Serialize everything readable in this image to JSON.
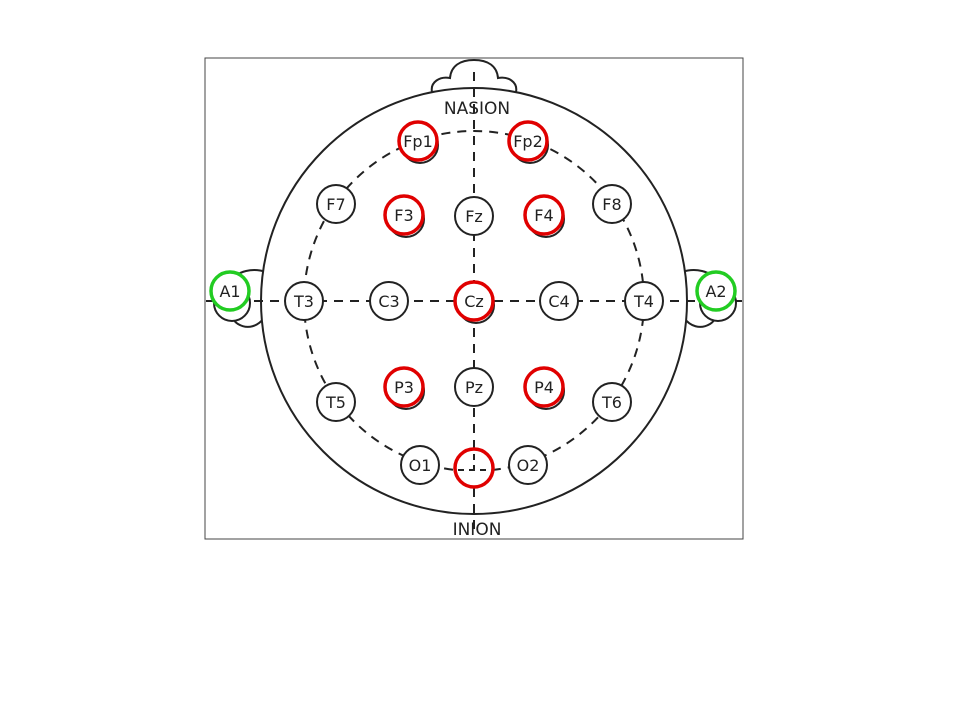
{
  "diagram": {
    "labels": {
      "top": "NASION",
      "bottom": "INION"
    },
    "electrodes": [
      {
        "id": "fp1",
        "label": "Fp1",
        "highlight": "red"
      },
      {
        "id": "fp2",
        "label": "Fp2",
        "highlight": "red"
      },
      {
        "id": "f7",
        "label": "F7",
        "highlight": "none"
      },
      {
        "id": "f3",
        "label": "F3",
        "highlight": "red"
      },
      {
        "id": "fz",
        "label": "Fz",
        "highlight": "none"
      },
      {
        "id": "f4",
        "label": "F4",
        "highlight": "red"
      },
      {
        "id": "f8",
        "label": "F8",
        "highlight": "none"
      },
      {
        "id": "a1",
        "label": "A1",
        "highlight": "green"
      },
      {
        "id": "t3",
        "label": "T3",
        "highlight": "none"
      },
      {
        "id": "c3",
        "label": "C3",
        "highlight": "none"
      },
      {
        "id": "cz",
        "label": "Cz",
        "highlight": "red"
      },
      {
        "id": "c4",
        "label": "C4",
        "highlight": "none"
      },
      {
        "id": "t4",
        "label": "T4",
        "highlight": "none"
      },
      {
        "id": "a2",
        "label": "A2",
        "highlight": "green"
      },
      {
        "id": "t5",
        "label": "T5",
        "highlight": "none"
      },
      {
        "id": "p3",
        "label": "P3",
        "highlight": "red"
      },
      {
        "id": "pz",
        "label": "Pz",
        "highlight": "none"
      },
      {
        "id": "p4",
        "label": "P4",
        "highlight": "red"
      },
      {
        "id": "t6",
        "label": "T6",
        "highlight": "none"
      },
      {
        "id": "o1",
        "label": "O1",
        "highlight": "none"
      },
      {
        "id": "oz",
        "label": "",
        "highlight": "red"
      },
      {
        "id": "o2",
        "label": "O2",
        "highlight": "none"
      }
    ],
    "colors": {
      "line": "#222222",
      "red": "#e00000",
      "green": "#22cc22",
      "background": "#ffffff"
    }
  }
}
